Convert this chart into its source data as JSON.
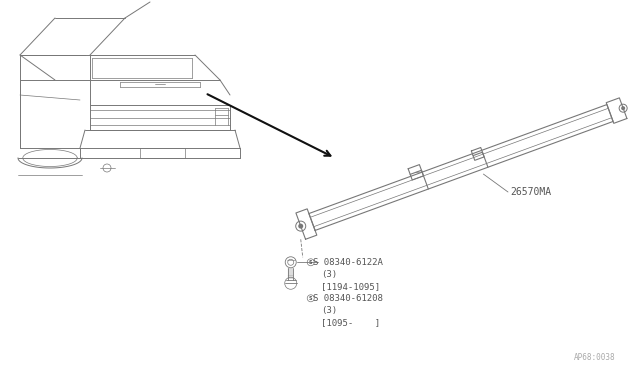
{
  "bg_color": "#ffffff",
  "line_color": "#777777",
  "dark_line": "#333333",
  "text_color": "#555555",
  "part_label_1": "26570MA",
  "screw_label_1": "S 08340-6122A",
  "screw_label_1b": "(3)",
  "screw_label_1c": "[1194-1095]",
  "screw_label_2": "S 08340-61208",
  "screw_label_2b": "(3)",
  "screw_label_2c": "[1095-    ]",
  "footer": "AP68:0038"
}
